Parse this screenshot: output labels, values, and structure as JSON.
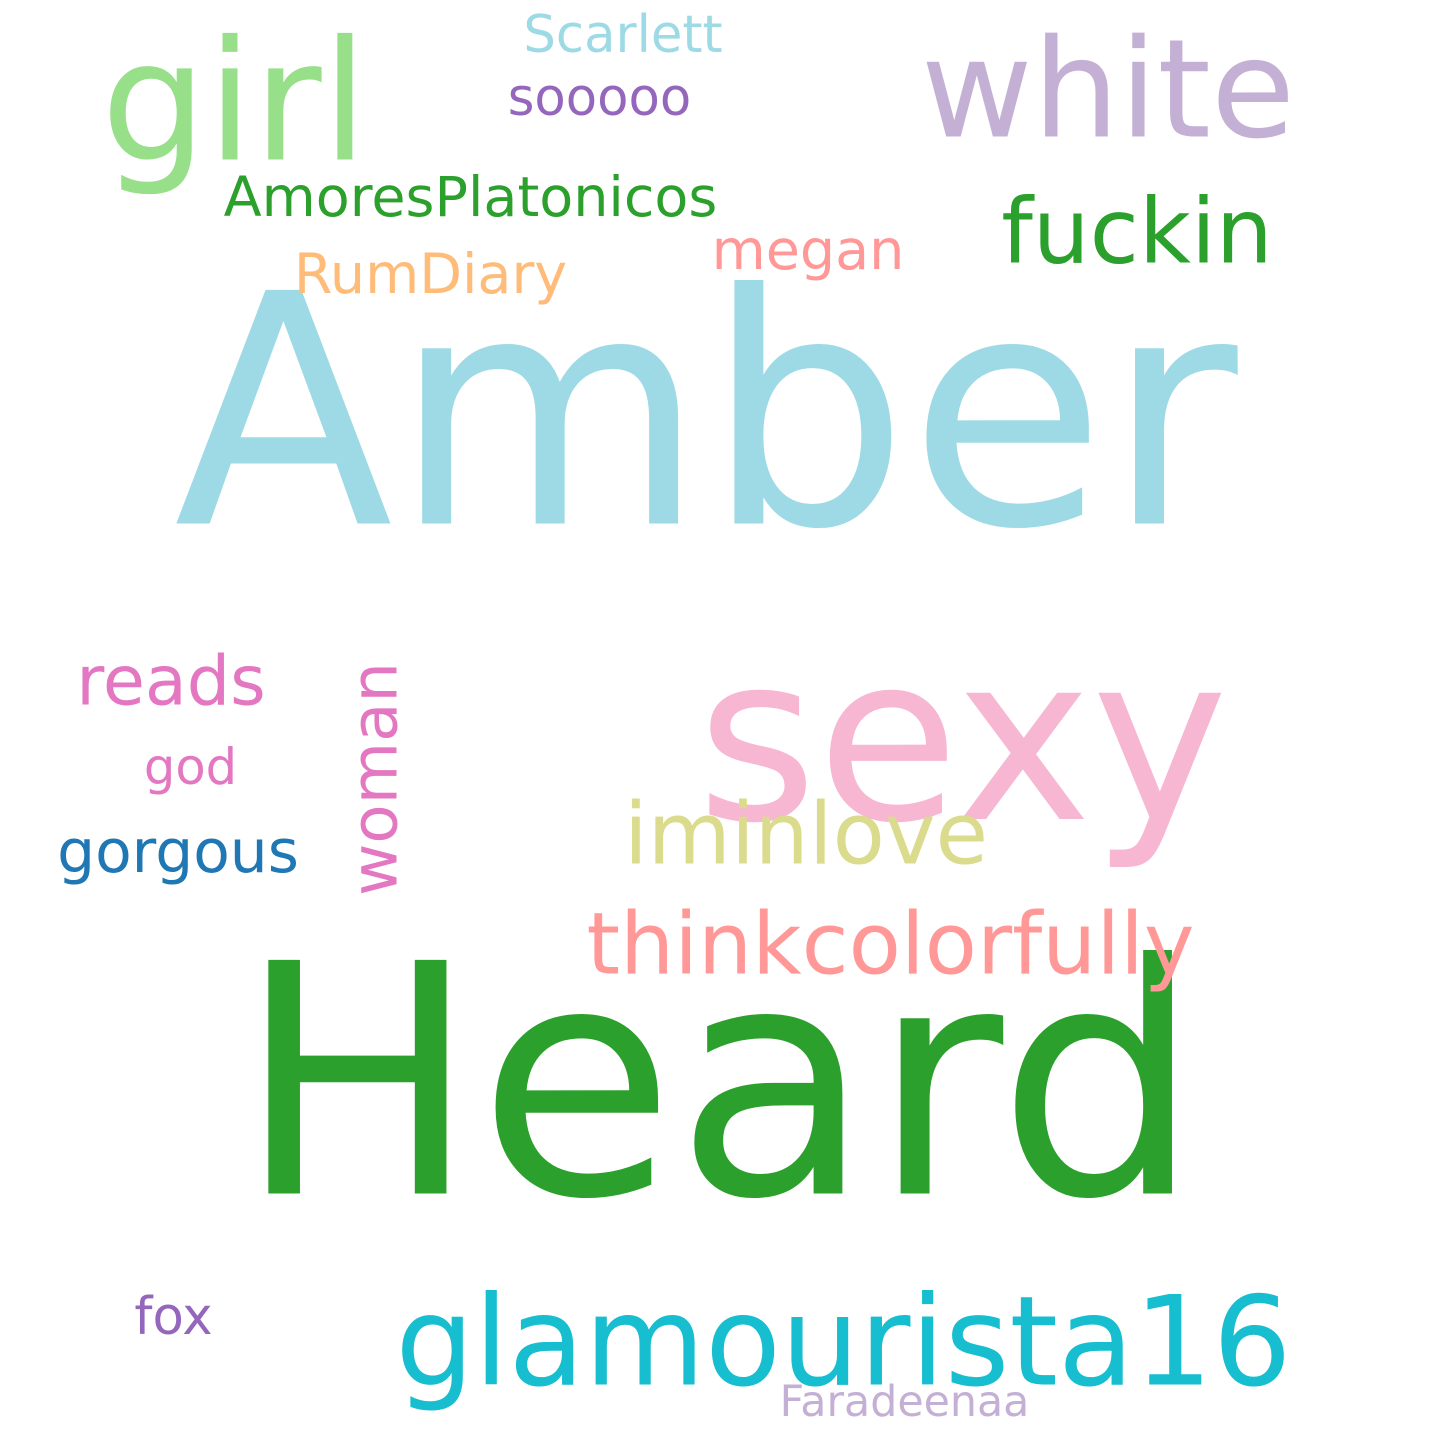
{
  "words": [
    {
      "id": "amber",
      "text": "Amber",
      "color": "#9edae5",
      "orientation": "horizontal"
    },
    {
      "id": "heard",
      "text": "Heard",
      "color": "#2ca02c",
      "orientation": "horizontal"
    },
    {
      "id": "sexy",
      "text": "sexy",
      "color": "#f7b6d2",
      "orientation": "horizontal"
    },
    {
      "id": "white",
      "text": "white",
      "color": "#c5b0d5",
      "orientation": "horizontal"
    },
    {
      "id": "girl",
      "text": "girl",
      "color": "#98df8a",
      "orientation": "horizontal"
    },
    {
      "id": "glamourista16",
      "text": "glamourista16",
      "color": "#17becf",
      "orientation": "horizontal"
    },
    {
      "id": "thinkcolorfully",
      "text": "thinkcolorfully",
      "color": "#ff9896",
      "orientation": "horizontal"
    },
    {
      "id": "iminlove",
      "text": "iminlove",
      "color": "#dbdb8d",
      "orientation": "horizontal"
    },
    {
      "id": "woman",
      "text": "woman",
      "color": "#e377c2",
      "orientation": "vertical"
    },
    {
      "id": "fuckin",
      "text": "fuckin",
      "color": "#2ca02c",
      "orientation": "horizontal"
    },
    {
      "id": "reads",
      "text": "reads",
      "color": "#e377c2",
      "orientation": "horizontal"
    },
    {
      "id": "amoresplatonicos",
      "text": "AmoresPlatonicos",
      "color": "#2ca02c",
      "orientation": "horizontal"
    },
    {
      "id": "gorgous",
      "text": "gorgous",
      "color": "#1f77b4",
      "orientation": "horizontal"
    },
    {
      "id": "rumdiary",
      "text": "RumDiary",
      "color": "#ffbb78",
      "orientation": "horizontal"
    },
    {
      "id": "megan",
      "text": "megan",
      "color": "#ff9896",
      "orientation": "horizontal"
    },
    {
      "id": "scarlett",
      "text": "Scarlett",
      "color": "#9edae5",
      "orientation": "horizontal"
    },
    {
      "id": "sooooo",
      "text": "sooooo",
      "color": "#9467bd",
      "orientation": "horizontal"
    },
    {
      "id": "god",
      "text": "god",
      "color": "#e377c2",
      "orientation": "horizontal"
    },
    {
      "id": "fox",
      "text": "fox",
      "color": "#9467bd",
      "orientation": "horizontal"
    },
    {
      "id": "faradeenaa",
      "text": "Faradeenaa",
      "color": "#c5b0d5",
      "orientation": "horizontal"
    }
  ]
}
